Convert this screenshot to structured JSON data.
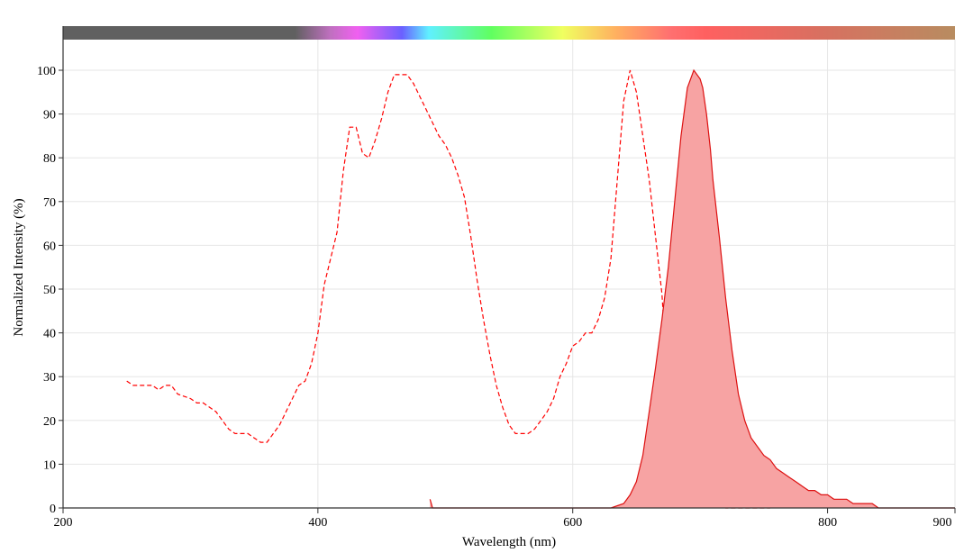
{
  "chart_data": {
    "type": "area",
    "title": "",
    "xlabel": "Wavelength (nm)",
    "ylabel": "Normalized Intensity (%)",
    "xlim": [
      200,
      900
    ],
    "ylim": [
      0,
      100
    ],
    "x_ticks": [
      200,
      400,
      600,
      800,
      900
    ],
    "y_ticks": [
      0,
      10,
      20,
      30,
      40,
      50,
      60,
      70,
      80,
      90,
      100
    ],
    "grid": true,
    "legend": "none",
    "spectrum_bar": true,
    "colors": {
      "excitation": "#ff0000",
      "emission_line": "#dd1111",
      "emission_fill": "#f7a3a3",
      "grid": "#e6e6e6",
      "axis": "#333333"
    },
    "series": [
      {
        "style": "dashed-line",
        "x": [
          250,
          255,
          260,
          270,
          275,
          280,
          285,
          290,
          300,
          305,
          310,
          320,
          325,
          330,
          335,
          340,
          345,
          350,
          355,
          360,
          365,
          370,
          375,
          380,
          385,
          390,
          395,
          400,
          405,
          410,
          415,
          420,
          425,
          430,
          435,
          440,
          445,
          450,
          455,
          460,
          465,
          470,
          475,
          480,
          485,
          490,
          495,
          500,
          505,
          510,
          515,
          520,
          525,
          530,
          535,
          540,
          545,
          550,
          555,
          560,
          565,
          570,
          575,
          580,
          585,
          590,
          595,
          600,
          605,
          610,
          615,
          620,
          625,
          630,
          635,
          640,
          645,
          650,
          655,
          660,
          665,
          670,
          672,
          675,
          680,
          685,
          690,
          695,
          700,
          705,
          710,
          715,
          720,
          725,
          730,
          735,
          740,
          745,
          750,
          755
        ],
        "y": [
          29,
          28,
          28,
          28,
          27,
          28,
          28,
          26,
          25,
          24,
          24,
          22,
          20,
          18,
          17,
          17,
          17,
          16,
          15,
          15,
          17,
          19,
          22,
          25,
          28,
          29,
          33,
          40,
          51,
          57,
          63,
          77,
          87,
          87,
          81,
          80,
          84,
          89,
          95,
          99,
          99,
          99,
          97,
          94,
          91,
          88,
          85,
          83,
          80,
          76,
          71,
          62,
          52,
          43,
          35,
          28,
          23,
          19,
          17,
          17,
          17,
          18,
          20,
          22,
          25,
          30,
          33,
          37,
          38,
          40,
          40,
          43,
          48,
          57,
          75,
          93,
          100,
          95,
          85,
          75,
          62,
          49,
          40,
          32,
          25,
          18,
          13,
          8,
          4,
          2,
          1,
          1,
          0,
          0,
          0,
          0,
          0,
          0,
          0,
          0
        ]
      },
      {
        "style": "filled-area",
        "x": [
          488,
          489,
          490,
          630,
          640,
          645,
          650,
          655,
          660,
          665,
          670,
          675,
          680,
          685,
          690,
          695,
          700,
          702,
          705,
          708,
          710,
          715,
          720,
          725,
          730,
          735,
          740,
          745,
          750,
          755,
          760,
          765,
          770,
          775,
          780,
          785,
          790,
          795,
          800,
          805,
          810,
          815,
          820,
          825,
          830,
          835,
          840,
          900
        ],
        "y": [
          2,
          1,
          0,
          0,
          1,
          3,
          6,
          12,
          22,
          32,
          43,
          55,
          70,
          85,
          96,
          100,
          98,
          96,
          90,
          82,
          75,
          62,
          48,
          36,
          26,
          20,
          16,
          14,
          12,
          11,
          9,
          8,
          7,
          6,
          5,
          4,
          4,
          3,
          3,
          2,
          2,
          2,
          1,
          1,
          1,
          1,
          0,
          0
        ]
      }
    ]
  }
}
